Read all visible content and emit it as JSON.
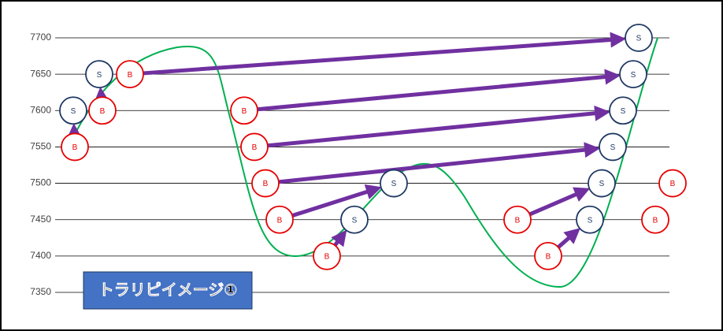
{
  "chart_data": {
    "type": "trade-map",
    "title": "トラリピイメージ①",
    "ylim": [
      7350,
      7700
    ],
    "yticks": [
      7350,
      7400,
      7450,
      7500,
      7550,
      7600,
      7650,
      7700
    ],
    "buy_label": "B",
    "sell_label": "S",
    "buy_color": "#e60000",
    "sell_color": "#1f3864",
    "arrow_color": "#7030a0",
    "curve_color": "#00b050",
    "trades": [
      {
        "buy": 7550,
        "sell": 7600
      },
      {
        "buy": 7600,
        "sell": 7650
      },
      {
        "buy": 7650,
        "sell": 7700
      },
      {
        "buy": 7600,
        "sell": 7650
      },
      {
        "buy": 7550,
        "sell": 7600
      },
      {
        "buy": 7500,
        "sell": 7550
      },
      {
        "buy": 7450,
        "sell": 7500
      },
      {
        "buy": 7400,
        "sell": 7450
      },
      {
        "buy": 7450,
        "sell": 7500
      },
      {
        "buy": 7400,
        "sell": 7450
      }
    ],
    "pending_buys": [
      7500,
      7450
    ]
  }
}
